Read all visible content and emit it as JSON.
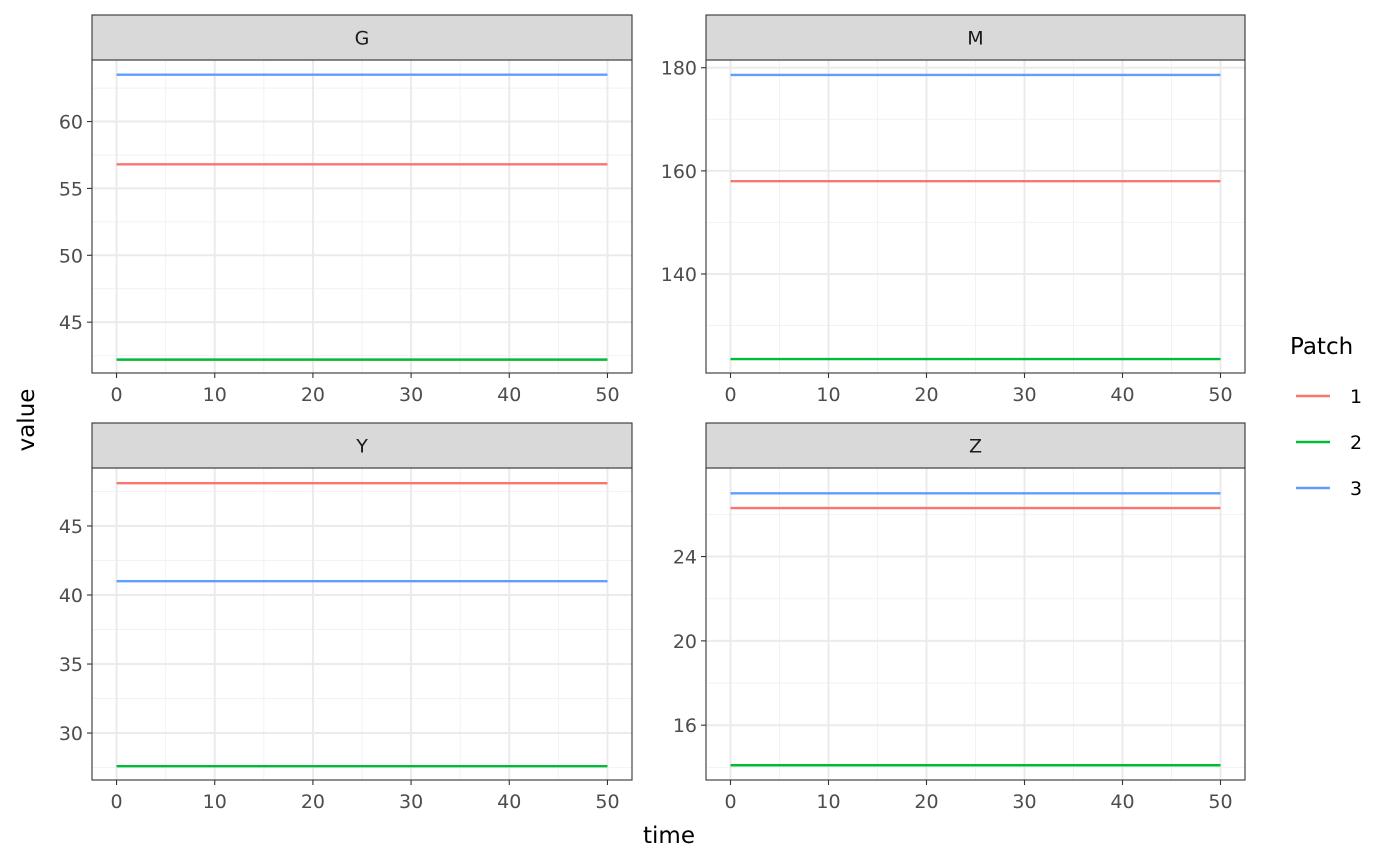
{
  "chart_data": {
    "type": "line",
    "xlabel": "time",
    "ylabel": "value",
    "legend": {
      "title": "Patch",
      "position": "right",
      "entries": [
        {
          "label": "1",
          "color": "#F8766D"
        },
        {
          "label": "2",
          "color": "#00BA38"
        },
        {
          "label": "3",
          "color": "#619CFF"
        }
      ]
    },
    "grid": true,
    "facets": [
      {
        "label": "G",
        "xlim": [
          -2.5,
          52.5
        ],
        "ylim": [
          41.2,
          64.6
        ],
        "xticks": [
          0,
          10,
          20,
          30,
          40,
          50
        ],
        "yticks": [
          45,
          50,
          55,
          60
        ],
        "series": [
          {
            "name": "1",
            "x": [
              0,
              50
            ],
            "values": [
              56.8,
              56.8
            ]
          },
          {
            "name": "2",
            "x": [
              0,
              50
            ],
            "values": [
              42.2,
              42.2
            ]
          },
          {
            "name": "3",
            "x": [
              0,
              50
            ],
            "values": [
              63.5,
              63.5
            ]
          }
        ]
      },
      {
        "label": "M",
        "xlim": [
          -2.5,
          52.5
        ],
        "ylim": [
          120.8,
          181.5
        ],
        "xticks": [
          0,
          10,
          20,
          30,
          40,
          50
        ],
        "yticks": [
          140,
          160,
          180
        ],
        "series": [
          {
            "name": "1",
            "x": [
              0,
              50
            ],
            "values": [
              158.0,
              158.0
            ]
          },
          {
            "name": "2",
            "x": [
              0,
              50
            ],
            "values": [
              123.5,
              123.5
            ]
          },
          {
            "name": "3",
            "x": [
              0,
              50
            ],
            "values": [
              178.6,
              178.6
            ]
          }
        ]
      },
      {
        "label": "Y",
        "xlim": [
          -2.5,
          52.5
        ],
        "ylim": [
          26.6,
          49.2
        ],
        "xticks": [
          0,
          10,
          20,
          30,
          40,
          50
        ],
        "yticks": [
          30,
          35,
          40,
          45
        ],
        "series": [
          {
            "name": "1",
            "x": [
              0,
              50
            ],
            "values": [
              48.1,
              48.1
            ]
          },
          {
            "name": "2",
            "x": [
              0,
              50
            ],
            "values": [
              27.6,
              27.6
            ]
          },
          {
            "name": "3",
            "x": [
              0,
              50
            ],
            "values": [
              41.0,
              41.0
            ]
          }
        ]
      },
      {
        "label": "Z",
        "xlim": [
          -2.5,
          52.5
        ],
        "ylim": [
          13.4,
          28.2
        ],
        "xticks": [
          0,
          10,
          20,
          30,
          40,
          50
        ],
        "yticks": [
          16,
          20,
          24
        ],
        "series": [
          {
            "name": "1",
            "x": [
              0,
              50
            ],
            "values": [
              26.3,
              26.3
            ]
          },
          {
            "name": "2",
            "x": [
              0,
              50
            ],
            "values": [
              14.1,
              14.1
            ]
          },
          {
            "name": "3",
            "x": [
              0,
              50
            ],
            "values": [
              27.0,
              27.0
            ]
          }
        ]
      }
    ]
  }
}
